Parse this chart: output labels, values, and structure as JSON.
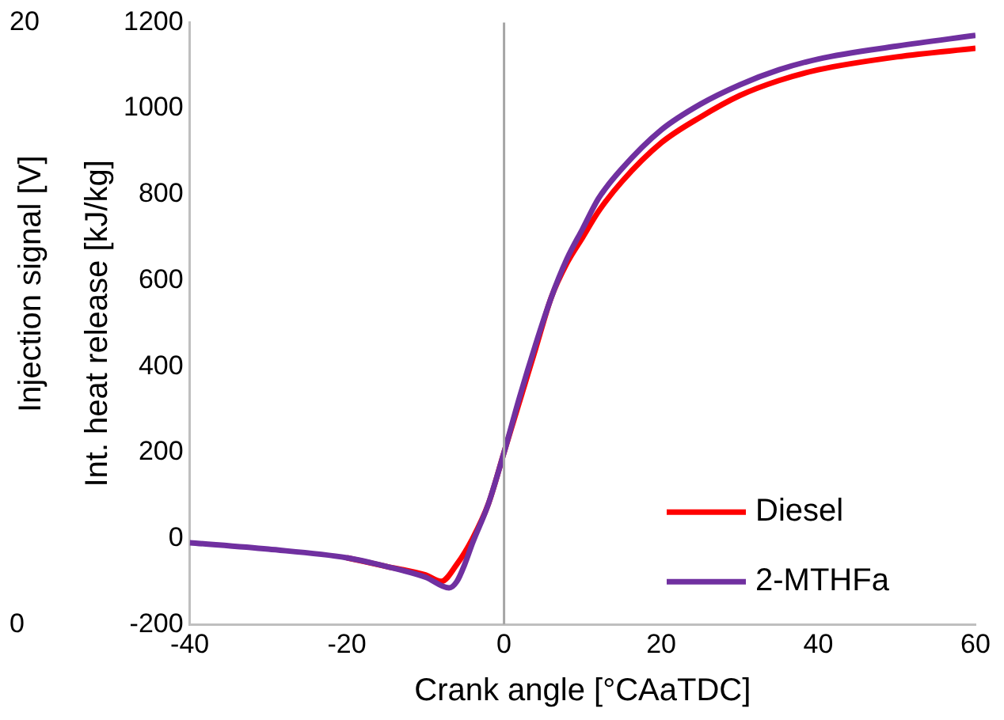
{
  "chart_data": {
    "type": "line",
    "xlabel": "Crank angle [°CAaTDC]",
    "ylabel": "Injection signal [V]",
    "y2label": "Int. heat release [kJ/kg]",
    "xlim": [
      -40,
      60
    ],
    "xticks": [
      -40,
      -20,
      0,
      20,
      40,
      60
    ],
    "ylim": [
      0,
      20
    ],
    "yticks": [
      0,
      20
    ],
    "y2lim": [
      -200,
      1200
    ],
    "y2ticks": [
      -200,
      0,
      200,
      400,
      600,
      800,
      1000,
      1200
    ],
    "grid": false,
    "legend": "bottom right",
    "marker": "none",
    "line_style": "solid",
    "ref_lines": [
      {
        "axis": "x",
        "value": 0,
        "color": "#a6a6a6"
      }
    ],
    "series": [
      {
        "name": "Diesel",
        "color": "#ff0000",
        "axis": "y2",
        "x": [
          -20,
          -15,
          -10,
          -8,
          -6,
          -4,
          -2,
          0,
          2,
          4,
          6,
          8,
          10,
          12,
          15,
          20,
          25,
          30,
          35,
          40,
          50,
          60
        ],
        "values": [
          -45,
          -65,
          -85,
          -100,
          -60,
          0,
          80,
          200,
          320,
          440,
          560,
          640,
          700,
          760,
          830,
          920,
          980,
          1030,
          1065,
          1090,
          1120,
          1140
        ]
      },
      {
        "name": "2-MTHFa",
        "color": "#7030a0",
        "axis": "y2",
        "x": [
          -40,
          -30,
          -20,
          -15,
          -10,
          -7,
          -6,
          -5,
          -4,
          -2,
          0,
          2,
          4,
          6,
          8,
          10,
          12,
          15,
          20,
          25,
          30,
          35,
          40,
          50,
          60
        ],
        "values": [
          -10,
          -25,
          -45,
          -65,
          -90,
          -115,
          -100,
          -60,
          -10,
          80,
          200,
          330,
          450,
          560,
          650,
          720,
          790,
          860,
          950,
          1010,
          1055,
          1090,
          1115,
          1145,
          1170
        ]
      }
    ]
  }
}
